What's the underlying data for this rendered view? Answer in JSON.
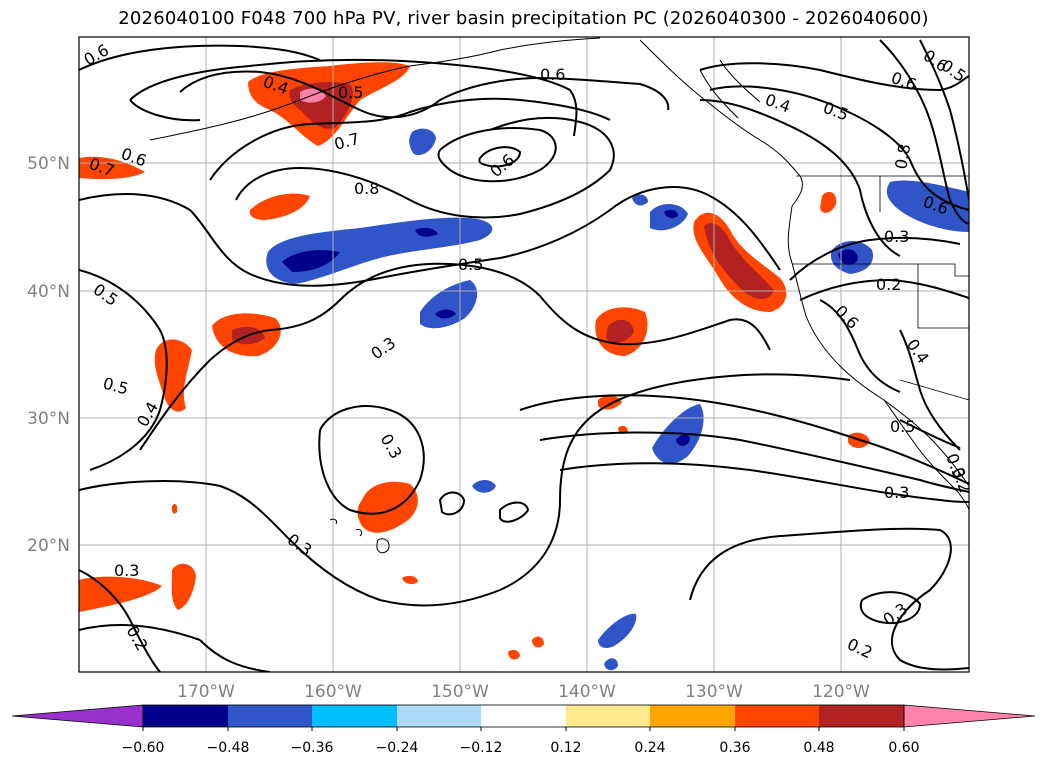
{
  "title": "2026040100 F048 700 hPa PV, river basin precipitation PC (2026040300 - 2026040600)",
  "map": {
    "lat_labels": [
      "50°N",
      "40°N",
      "30°N",
      "20°N"
    ],
    "lon_labels": [
      "170°W",
      "160°W",
      "150°W",
      "140°W",
      "130°W",
      "120°W"
    ],
    "contour_labels": [
      "0.6",
      "0.4",
      "0.5",
      "0.7",
      "0.6",
      "0.7",
      "0.6",
      "0.8",
      "0.6",
      "0.5",
      "0.3",
      "0.5",
      "0.5",
      "0.4",
      "0.3",
      "0.3",
      "0.3",
      "0.2",
      "0.3",
      "0.2",
      "0.6",
      "0.4",
      "0.5",
      "0.6",
      "0.5",
      "0.8",
      "0.6",
      "0.3",
      "0.2",
      "0.6",
      "0.4",
      "0.5",
      "0.3",
      "0.3",
      "0.2"
    ]
  },
  "colorbar": {
    "colors": [
      "#9932cc",
      "#00008b",
      "#3055c8",
      "#00bfff",
      "#add8f5",
      "#ffffff",
      "#ffe98c",
      "#ffa500",
      "#ff4500",
      "#b22222",
      "#ff82ab"
    ],
    "tick_labels": [
      "−0.60",
      "−0.48",
      "−0.36",
      "−0.24",
      "−0.12",
      "0.12",
      "0.24",
      "0.36",
      "0.48",
      "0.60"
    ]
  }
}
